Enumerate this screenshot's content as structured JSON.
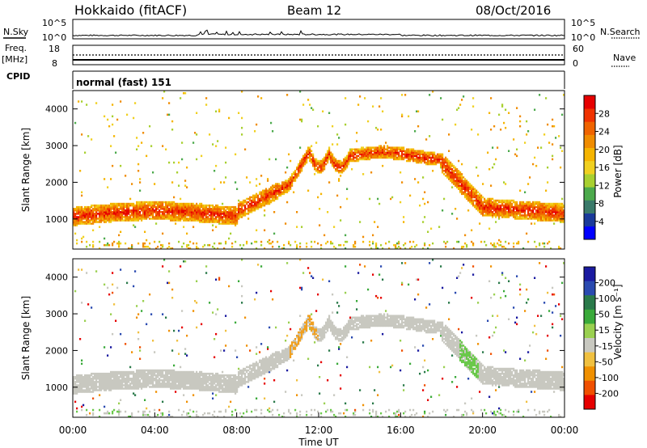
{
  "header": {
    "station": "Hokkaido (fitACF)",
    "beam": "Beam 12",
    "date": "08/Oct/2016"
  },
  "top_panels": {
    "nsky_label": "N.Sky",
    "nsky_ticks": [
      "10^5",
      "10^0"
    ],
    "nsearch_label": "N.Search",
    "nsearch_ticks": [
      "10^5",
      "10^0"
    ],
    "freq_label": "Freq.",
    "freq_unit": "[MHz]",
    "freq_ticks": [
      "18",
      "8"
    ],
    "nave_label": "Nave",
    "nave_ticks": [
      "60",
      "0"
    ],
    "cpid_label": "CPID",
    "cpid_text": "normal (fast) 151"
  },
  "chart_data": [
    {
      "type": "heatmap",
      "name": "power-panel",
      "ylabel": "Slant Range [km]",
      "xlabel": "",
      "x_range_hours": [
        0,
        24
      ],
      "ylim": [
        180,
        4500
      ],
      "y_ticks": [
        1000,
        2000,
        3000,
        4000
      ],
      "colorbar": {
        "label": "Power [dB]",
        "ticks": [
          "4",
          "8",
          "12",
          "16",
          "20",
          "24",
          "28"
        ],
        "range": [
          0,
          32
        ],
        "colors": [
          "#0000ff",
          "#1a3a9a",
          "#3a7a6a",
          "#4caa4c",
          "#a8d030",
          "#f0d020",
          "#f5b400",
          "#f08c00",
          "#f06400",
          "#f03200",
          "#e60000"
        ]
      }
    },
    {
      "type": "heatmap",
      "name": "velocity-panel",
      "ylabel": "Slant Range [km]",
      "xlabel": "Time UT",
      "x_range_hours": [
        0,
        24
      ],
      "ylim": [
        180,
        4500
      ],
      "y_ticks": [
        1000,
        2000,
        3000,
        4000
      ],
      "x_ticks": [
        "00:00",
        "04:00",
        "08:00",
        "12:00",
        "16:00",
        "20:00",
        "00:00"
      ],
      "colorbar": {
        "label": "Velocity [m s⁻¹]",
        "ticks": [
          "200",
          "100",
          "50",
          "15",
          "-15",
          "-50",
          "-100",
          "-200"
        ],
        "colors": [
          "#1a1aa0",
          "#2a4ab0",
          "#2a7a4a",
          "#3aaa3a",
          "#9ad050",
          "#c8c8c0",
          "#f0c040",
          "#f09000",
          "#f05000",
          "#e60000"
        ]
      }
    }
  ],
  "colors": {
    "power_main": "#e82a10",
    "power_edge": "#f08c20",
    "power_low": "#40a050",
    "velocity_ground": "#c8c8c0",
    "velocity_orange": "#f0a020",
    "velocity_green": "#6ac84a"
  }
}
